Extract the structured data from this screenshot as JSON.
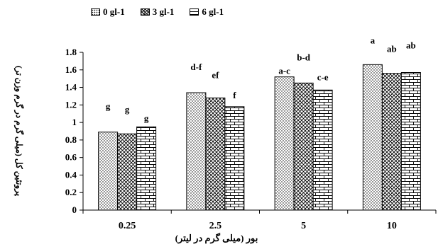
{
  "chart_data": {
    "type": "bar",
    "xlabel": "بور (میلی گرم در لیتر)",
    "ylabel": "پروتئین کل (میلی گرم در گرم وزن تر)",
    "categories": [
      "0.25",
      "2.5",
      "5",
      "10"
    ],
    "ylim": [
      0,
      1.8
    ],
    "yticks": [
      "0",
      "0.2",
      "0.4",
      "0.6",
      "0.8",
      "1",
      "1.2",
      "1.4",
      "1.6",
      "1.8"
    ],
    "grid": false,
    "legend_position": "top",
    "series": [
      {
        "name": "0 gl-1",
        "pattern": "dots",
        "values": [
          0.89,
          1.34,
          1.52,
          1.66
        ],
        "labels": [
          "g",
          "d-f",
          "a-c",
          "a"
        ]
      },
      {
        "name": "3 gl-1",
        "pattern": "crosshatch",
        "values": [
          0.87,
          1.28,
          1.45,
          1.56
        ],
        "labels": [
          "g",
          "ef",
          "b-d",
          "ab"
        ]
      },
      {
        "name": "6 gl-1",
        "pattern": "brick",
        "values": [
          0.95,
          1.18,
          1.37,
          1.57
        ],
        "labels": [
          "g",
          "f",
          "c-e",
          "ab"
        ]
      }
    ]
  }
}
